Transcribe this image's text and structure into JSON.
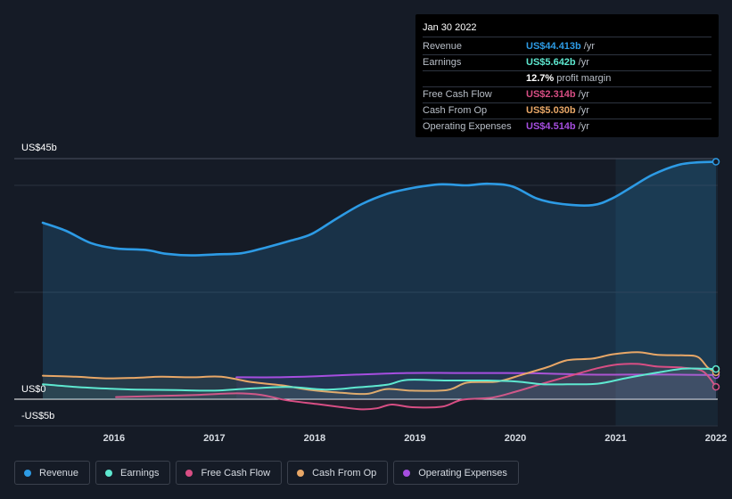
{
  "tooltip": {
    "date": "Jan 30 2022",
    "rows": [
      {
        "label": "Revenue",
        "value": "US$44.413b",
        "unit": "/yr",
        "color": "#2d9be5"
      },
      {
        "label": "Earnings",
        "value": "US$5.642b",
        "unit": "/yr",
        "color": "#5ee8d0"
      },
      {
        "label": "",
        "value": "12.7%",
        "unit": "profit margin",
        "color": "#ffffff"
      },
      {
        "label": "Free Cash Flow",
        "value": "US$2.314b",
        "unit": "/yr",
        "color": "#d84e84"
      },
      {
        "label": "Cash From Op",
        "value": "US$5.030b",
        "unit": "/yr",
        "color": "#e8a767"
      },
      {
        "label": "Operating Expenses",
        "value": "US$4.514b",
        "unit": "/yr",
        "color": "#a64ee0"
      }
    ]
  },
  "chart_data": {
    "type": "line",
    "ylim": [
      -5,
      45
    ],
    "xlim": [
      2015.35,
      2022.08
    ],
    "y_tick_labels": {
      "top": "US$45b",
      "zero": "US$0",
      "bottom": "-US$5b"
    },
    "x_tick_labels": [
      "2016",
      "2017",
      "2018",
      "2019",
      "2020",
      "2021",
      "2022"
    ],
    "x_ticks": [
      2016,
      2017,
      2018,
      2019,
      2020,
      2021,
      2022
    ],
    "highlight_from": 2021.08,
    "series": [
      {
        "name": "Revenue",
        "color": "#2d9be5",
        "fill": true,
        "points": [
          [
            2015.37,
            33
          ],
          [
            2015.6,
            31.5
          ],
          [
            2015.85,
            29.2
          ],
          [
            2016.1,
            28.2
          ],
          [
            2016.4,
            27.9
          ],
          [
            2016.6,
            27.2
          ],
          [
            2016.85,
            26.9
          ],
          [
            2017.1,
            27.1
          ],
          [
            2017.35,
            27.3
          ],
          [
            2017.6,
            28.4
          ],
          [
            2017.85,
            29.7
          ],
          [
            2018.05,
            30.9
          ],
          [
            2018.3,
            33.8
          ],
          [
            2018.55,
            36.5
          ],
          [
            2018.8,
            38.4
          ],
          [
            2019.0,
            39.3
          ],
          [
            2019.15,
            39.8
          ],
          [
            2019.35,
            40.2
          ],
          [
            2019.6,
            40
          ],
          [
            2019.8,
            40.3
          ],
          [
            2020.05,
            39.8
          ],
          [
            2020.3,
            37.5
          ],
          [
            2020.55,
            36.5
          ],
          [
            2020.85,
            36.3
          ],
          [
            2021.05,
            37.6
          ],
          [
            2021.25,
            39.8
          ],
          [
            2021.45,
            42
          ],
          [
            2021.7,
            43.8
          ],
          [
            2021.9,
            44.3
          ],
          [
            2022.08,
            44.41
          ]
        ]
      },
      {
        "name": "Earnings",
        "color": "#5ee8d0",
        "fill": false,
        "points": [
          [
            2015.37,
            2.8
          ],
          [
            2015.7,
            2.3
          ],
          [
            2016.0,
            2.0
          ],
          [
            2016.3,
            1.8
          ],
          [
            2016.7,
            1.7
          ],
          [
            2017.05,
            1.6
          ],
          [
            2017.35,
            1.9
          ],
          [
            2017.8,
            2.3
          ],
          [
            2018.2,
            1.8
          ],
          [
            2018.5,
            2.2
          ],
          [
            2018.8,
            2.7
          ],
          [
            2019.0,
            3.6
          ],
          [
            2019.4,
            3.5
          ],
          [
            2019.8,
            3.5
          ],
          [
            2020.1,
            3.3
          ],
          [
            2020.35,
            2.8
          ],
          [
            2020.6,
            2.8
          ],
          [
            2020.9,
            2.9
          ],
          [
            2021.2,
            4.0
          ],
          [
            2021.5,
            5.0
          ],
          [
            2021.75,
            5.7
          ],
          [
            2021.95,
            5.7
          ],
          [
            2022.08,
            5.64
          ]
        ]
      },
      {
        "name": "Free Cash Flow",
        "color": "#d84e84",
        "fill": false,
        "points": [
          [
            2016.1,
            0.4
          ],
          [
            2016.5,
            0.6
          ],
          [
            2016.9,
            0.8
          ],
          [
            2017.3,
            1.1
          ],
          [
            2017.55,
            0.8
          ],
          [
            2017.8,
            -0.2
          ],
          [
            2018.1,
            -0.9
          ],
          [
            2018.35,
            -1.5
          ],
          [
            2018.55,
            -1.9
          ],
          [
            2018.7,
            -1.7
          ],
          [
            2018.85,
            -1.0
          ],
          [
            2019.05,
            -1.5
          ],
          [
            2019.35,
            -1.4
          ],
          [
            2019.55,
            -0.1
          ],
          [
            2019.85,
            0.3
          ],
          [
            2020.1,
            1.5
          ],
          [
            2020.35,
            2.9
          ],
          [
            2020.65,
            4.5
          ],
          [
            2020.9,
            5.8
          ],
          [
            2021.1,
            6.5
          ],
          [
            2021.3,
            6.6
          ],
          [
            2021.5,
            6.1
          ],
          [
            2021.75,
            5.9
          ],
          [
            2021.95,
            5.2
          ],
          [
            2022.08,
            2.31
          ]
        ]
      },
      {
        "name": "Cash From Op",
        "color": "#e8a767",
        "fill": false,
        "points": [
          [
            2015.37,
            4.4
          ],
          [
            2015.7,
            4.2
          ],
          [
            2016.0,
            3.9
          ],
          [
            2016.3,
            4.0
          ],
          [
            2016.55,
            4.2
          ],
          [
            2016.85,
            4.1
          ],
          [
            2017.15,
            4.2
          ],
          [
            2017.45,
            3.2
          ],
          [
            2017.75,
            2.6
          ],
          [
            2018.05,
            1.7
          ],
          [
            2018.35,
            1.2
          ],
          [
            2018.6,
            1.0
          ],
          [
            2018.8,
            1.9
          ],
          [
            2019.05,
            1.6
          ],
          [
            2019.4,
            1.7
          ],
          [
            2019.6,
            3.1
          ],
          [
            2019.9,
            3.3
          ],
          [
            2020.15,
            4.6
          ],
          [
            2020.4,
            6.0
          ],
          [
            2020.6,
            7.3
          ],
          [
            2020.85,
            7.6
          ],
          [
            2021.05,
            8.4
          ],
          [
            2021.3,
            8.8
          ],
          [
            2021.5,
            8.3
          ],
          [
            2021.75,
            8.2
          ],
          [
            2021.9,
            7.9
          ],
          [
            2022.0,
            5.9
          ],
          [
            2022.08,
            5.03
          ]
        ]
      },
      {
        "name": "Operating Expenses",
        "color": "#a64ee0",
        "fill": false,
        "points": [
          [
            2017.3,
            4.1
          ],
          [
            2017.7,
            4.1
          ],
          [
            2018.1,
            4.3
          ],
          [
            2018.5,
            4.6
          ],
          [
            2019.0,
            4.9
          ],
          [
            2019.5,
            4.9
          ],
          [
            2020.0,
            4.9
          ],
          [
            2020.4,
            4.8
          ],
          [
            2020.8,
            4.6
          ],
          [
            2021.2,
            4.6
          ],
          [
            2021.6,
            4.6
          ],
          [
            2022.08,
            4.51
          ]
        ]
      }
    ]
  },
  "legend": [
    {
      "label": "Revenue",
      "color": "#2d9be5"
    },
    {
      "label": "Earnings",
      "color": "#5ee8d0"
    },
    {
      "label": "Free Cash Flow",
      "color": "#d84e84"
    },
    {
      "label": "Cash From Op",
      "color": "#e8a767"
    },
    {
      "label": "Operating Expenses",
      "color": "#a64ee0"
    }
  ]
}
